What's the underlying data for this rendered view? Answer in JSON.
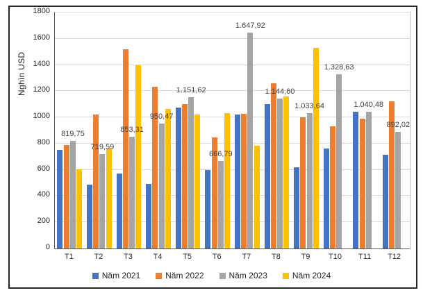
{
  "chart_data": {
    "type": "bar",
    "title": "",
    "xlabel": "",
    "ylabel": "Nghìn USD",
    "ylim": [
      0,
      1800
    ],
    "yticks": [
      0,
      200,
      400,
      600,
      800,
      1000,
      1200,
      1400,
      1600,
      1800
    ],
    "grid": true,
    "legend_position": "bottom",
    "categories": [
      "T1",
      "T2",
      "T3",
      "T4",
      "T5",
      "T6",
      "T7",
      "T8",
      "T9",
      "T10",
      "T11",
      "T12"
    ],
    "series": [
      {
        "name": "Năm 2021",
        "color": "#4472C4",
        "values": [
          750,
          485,
          570,
          495,
          1075,
          600,
          1020,
          1100,
          620,
          760,
          1045,
          715
        ]
      },
      {
        "name": "Năm 2022",
        "color": "#ED7D31",
        "values": [
          790,
          1020,
          1520,
          1235,
          1100,
          845,
          1025,
          1260,
          1000,
          930,
          990,
          1125
        ]
      },
      {
        "name": "Năm 2023",
        "color": "#A5A5A5",
        "values": [
          819.75,
          719.59,
          853.31,
          950.47,
          1151.62,
          666.79,
          1647.92,
          1144.6,
          1033.64,
          1328.63,
          1040.48,
          892.02
        ],
        "labels": [
          "819,75",
          "719,59",
          "853,31",
          "950,47",
          "1.151,62",
          "666,79",
          "1.647,92",
          "1.144,60",
          "1.033,64",
          "1.328,63",
          "1.040,48",
          "892,02"
        ]
      },
      {
        "name": "Năm 2024",
        "color": "#FFC000",
        "values": [
          605,
          760,
          1400,
          1065,
          1020,
          1035,
          785,
          1160,
          1530,
          null,
          null,
          null
        ]
      }
    ]
  }
}
